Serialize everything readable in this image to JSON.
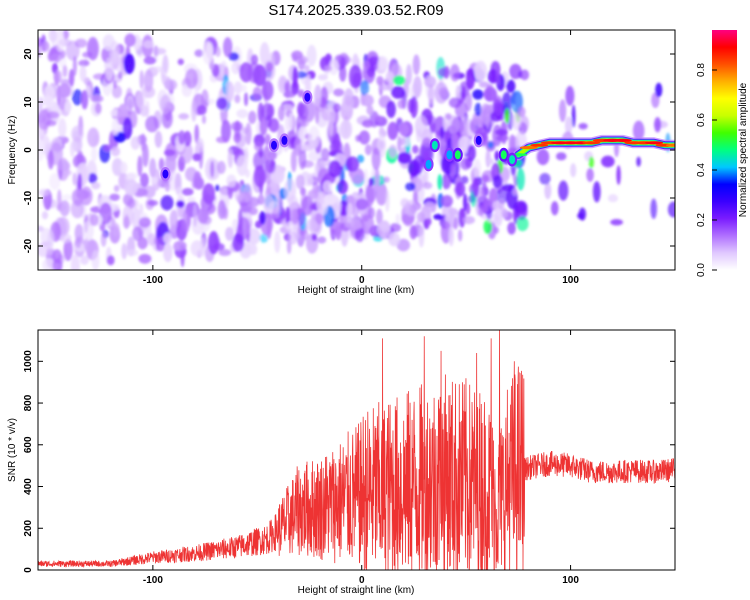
{
  "title": "S174.2025.339.03.52.R09",
  "colorbar": {
    "label": "Normalized spectral amplitude",
    "ticks": [
      "0.0",
      "0.2",
      "0.4",
      "0.6",
      "0.8"
    ],
    "tick_values": [
      0.0,
      0.2,
      0.4,
      0.6,
      0.8
    ],
    "range": [
      0,
      0.96
    ],
    "colors": [
      "#ffffff",
      "#e0c8ff",
      "#b070ff",
      "#7a1cff",
      "#3a00ff",
      "#0000ff",
      "#00c8ff",
      "#00ff80",
      "#40ff00",
      "#c8ff00",
      "#ffff00",
      "#ffb000",
      "#ff5000",
      "#ff0000",
      "#ff0080"
    ]
  },
  "chart_data": [
    {
      "type": "heatmap",
      "xlabel": "Height of straight line (km)",
      "ylabel": "Frequency (Hz)",
      "xlim": [
        -155,
        150
      ],
      "ylim": [
        -25,
        25
      ],
      "xticks": [
        "-100",
        "0",
        "100"
      ],
      "xtick_values": [
        -100,
        0,
        100
      ],
      "yticks": [
        "-20",
        "-10",
        "0",
        "10",
        "20"
      ],
      "ytick_values": [
        -20,
        -10,
        0,
        10,
        20
      ],
      "ridge": {
        "x": [
          75,
          80,
          85,
          90,
          95,
          100,
          105,
          110,
          115,
          120,
          125,
          130,
          135,
          140,
          145,
          150
        ],
        "y": [
          -1,
          0.5,
          1,
          1.5,
          1.5,
          1.5,
          1.5,
          1.5,
          2,
          2,
          2,
          1.5,
          1.5,
          1.5,
          1,
          1
        ],
        "amplitude": [
          0.5,
          0.8,
          0.85,
          0.85,
          0.9,
          0.9,
          0.9,
          0.85,
          0.85,
          0.9,
          0.9,
          0.85,
          0.85,
          0.9,
          0.85,
          0.8
        ]
      },
      "peaks": [
        {
          "x": -94,
          "y": -5,
          "amplitude": 0.3
        },
        {
          "x": -42,
          "y": 1,
          "amplitude": 0.3
        },
        {
          "x": -37,
          "y": 2,
          "amplitude": 0.3
        },
        {
          "x": -26,
          "y": 11,
          "amplitude": 0.3
        },
        {
          "x": 32,
          "y": -3,
          "amplitude": 0.4
        },
        {
          "x": 35,
          "y": 1,
          "amplitude": 0.45
        },
        {
          "x": 42,
          "y": -1,
          "amplitude": 0.4
        },
        {
          "x": 46,
          "y": -1,
          "amplitude": 0.5
        },
        {
          "x": 56,
          "y": 2,
          "amplitude": 0.3
        },
        {
          "x": 68,
          "y": -1,
          "amplitude": 0.5
        },
        {
          "x": 72,
          "y": -2,
          "amplitude": 0.45
        }
      ],
      "background_amplitude": 0.15
    },
    {
      "type": "line",
      "xlabel": "Height of straight line (km)",
      "ylabel": "SNR (10 * v/v)",
      "xlim": [
        -155,
        150
      ],
      "ylim": [
        0,
        1150
      ],
      "xticks": [
        "-100",
        "0",
        "100"
      ],
      "xtick_values": [
        -100,
        0,
        100
      ],
      "yticks": [
        "0",
        "200",
        "400",
        "600",
        "800",
        "1000"
      ],
      "ytick_values": [
        0,
        200,
        400,
        600,
        800,
        1000
      ],
      "series": [
        {
          "color": "#ee3333",
          "x": [
            -155,
            -140,
            -120,
            -100,
            -80,
            -60,
            -45,
            -38,
            -30,
            -20,
            -10,
            0,
            10,
            20,
            30,
            40,
            50,
            60,
            65,
            70,
            75,
            80,
            90,
            100,
            110,
            120,
            130,
            140,
            150
          ],
          "y": [
            30,
            30,
            30,
            60,
            80,
            110,
            150,
            210,
            290,
            300,
            330,
            360,
            380,
            400,
            420,
            440,
            430,
            400,
            300,
            420,
            470,
            490,
            510,
            500,
            470,
            470,
            475,
            470,
            480
          ],
          "spikes": [
            {
              "x": 10,
              "y": 1110
            },
            {
              "x": 30,
              "y": 1120
            },
            {
              "x": 38,
              "y": 1050
            },
            {
              "x": 55,
              "y": 1040
            },
            {
              "x": 62,
              "y": 1110
            },
            {
              "x": 66,
              "y": 1150
            },
            {
              "x": 73,
              "y": 1000
            }
          ]
        }
      ]
    }
  ]
}
